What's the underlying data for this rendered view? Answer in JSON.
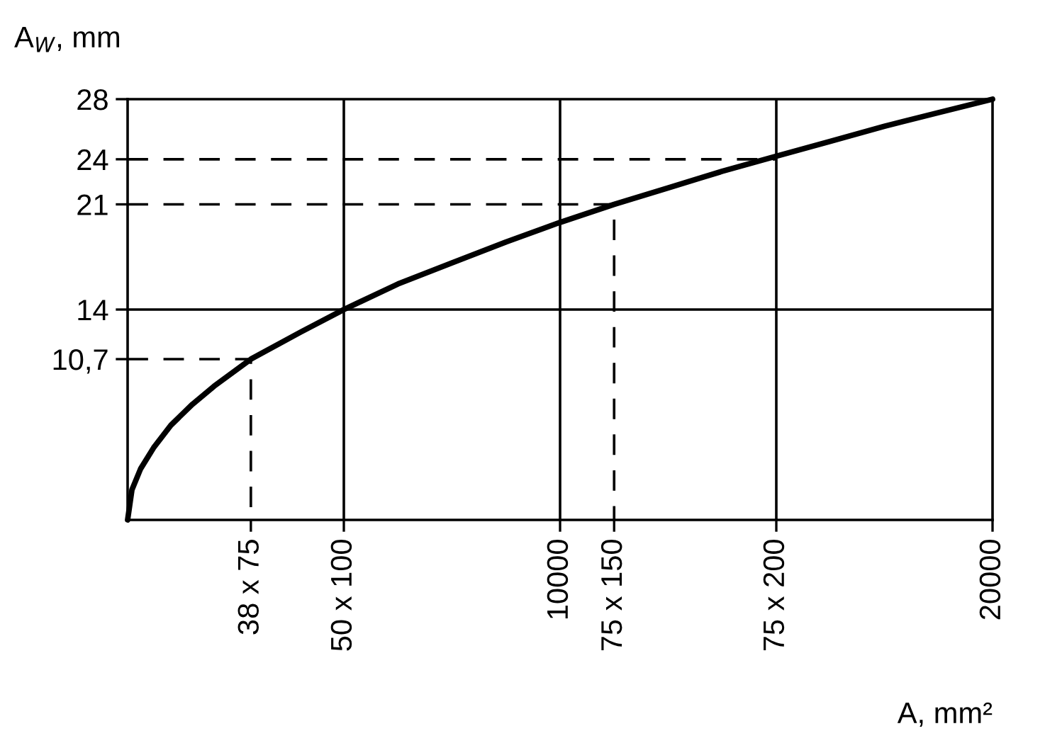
{
  "chart_data": {
    "type": "line",
    "xlabel": "A, mm²",
    "ylabel": "A$_{W}$, mm",
    "xlim": [
      0,
      20000
    ],
    "ylim": [
      0,
      28
    ],
    "xticks": [
      {
        "value": 2850,
        "label": "38 x 75"
      },
      {
        "value": 5000,
        "label": "50 x 100"
      },
      10000,
      {
        "value": 11250,
        "label": "75 x 150"
      },
      {
        "value": 15000,
        "label": "75 x 200"
      },
      20000
    ],
    "yticks": [
      {
        "value": 10.7,
        "label": "10,7"
      },
      14,
      21,
      24,
      28
    ],
    "grid": false,
    "legend": false,
    "ref_lines": [
      {
        "axis": "y",
        "value": 14,
        "color": "#000000",
        "line_style": "solid"
      },
      {
        "axis": "x",
        "value": 5000,
        "color": "#000000",
        "line_style": "solid"
      },
      {
        "axis": "x",
        "value": 10000,
        "color": "#000000",
        "line_style": "solid"
      },
      {
        "axis": "x",
        "value": 15000,
        "color": "#000000",
        "line_style": "solid"
      }
    ],
    "series": [
      {
        "color": "#000000",
        "line_style": "solid",
        "x": [
          0,
          100,
          300,
          600,
          1000,
          1500,
          2000,
          2850,
          4000,
          5000,
          6250,
          7500,
          8750,
          10000,
          11250,
          12500,
          13750,
          15000,
          16250,
          17500,
          18750,
          20000
        ],
        "values": [
          0,
          2.0,
          3.4,
          4.8,
          6.3,
          7.7,
          8.9,
          10.7,
          12.5,
          14,
          15.7,
          17.1,
          18.5,
          19.8,
          21,
          22.1,
          23.2,
          24.2,
          25.2,
          26.2,
          27.1,
          28
        ]
      },
      {
        "color": "#000000",
        "line_style": "dashed",
        "x": [
          0,
          2850,
          2850
        ],
        "values": [
          10.7,
          10.7,
          0
        ]
      },
      {
        "color": "#000000",
        "line_style": "dashed",
        "x": [
          0,
          11250,
          11250
        ],
        "values": [
          21,
          21,
          0
        ]
      },
      {
        "color": "#000000",
        "line_style": "dashed",
        "x": [
          0,
          15000
        ],
        "values": [
          24,
          24
        ]
      }
    ]
  }
}
